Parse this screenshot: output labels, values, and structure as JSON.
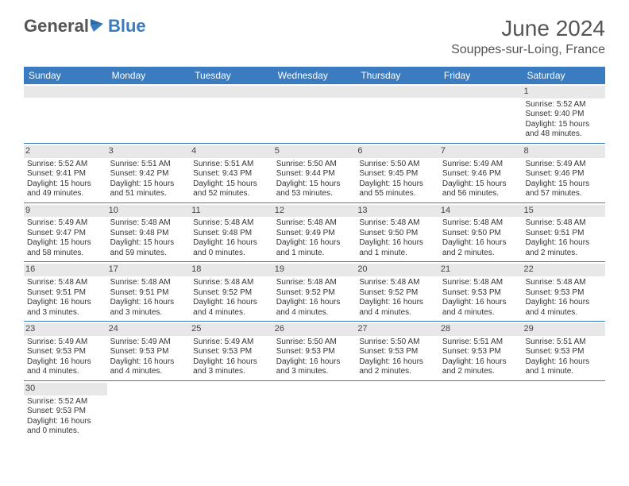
{
  "brand": {
    "general": "General",
    "blue": "Blue"
  },
  "title": "June 2024",
  "location": "Souppes-sur-Loing, France",
  "weekdays": [
    "Sunday",
    "Monday",
    "Tuesday",
    "Wednesday",
    "Thursday",
    "Friday",
    "Saturday"
  ],
  "colors": {
    "header_bar": "#3b7bbf",
    "daynum_bg": "#e8e8e8",
    "text": "#333333",
    "title_text": "#555555"
  },
  "weeks": [
    [
      {
        "num": "",
        "sunrise": "",
        "sunset": "",
        "daylight1": "",
        "daylight2": ""
      },
      {
        "num": "",
        "sunrise": "",
        "sunset": "",
        "daylight1": "",
        "daylight2": ""
      },
      {
        "num": "",
        "sunrise": "",
        "sunset": "",
        "daylight1": "",
        "daylight2": ""
      },
      {
        "num": "",
        "sunrise": "",
        "sunset": "",
        "daylight1": "",
        "daylight2": ""
      },
      {
        "num": "",
        "sunrise": "",
        "sunset": "",
        "daylight1": "",
        "daylight2": ""
      },
      {
        "num": "",
        "sunrise": "",
        "sunset": "",
        "daylight1": "",
        "daylight2": ""
      },
      {
        "num": "1",
        "sunrise": "Sunrise: 5:52 AM",
        "sunset": "Sunset: 9:40 PM",
        "daylight1": "Daylight: 15 hours",
        "daylight2": "and 48 minutes."
      }
    ],
    [
      {
        "num": "2",
        "sunrise": "Sunrise: 5:52 AM",
        "sunset": "Sunset: 9:41 PM",
        "daylight1": "Daylight: 15 hours",
        "daylight2": "and 49 minutes."
      },
      {
        "num": "3",
        "sunrise": "Sunrise: 5:51 AM",
        "sunset": "Sunset: 9:42 PM",
        "daylight1": "Daylight: 15 hours",
        "daylight2": "and 51 minutes."
      },
      {
        "num": "4",
        "sunrise": "Sunrise: 5:51 AM",
        "sunset": "Sunset: 9:43 PM",
        "daylight1": "Daylight: 15 hours",
        "daylight2": "and 52 minutes."
      },
      {
        "num": "5",
        "sunrise": "Sunrise: 5:50 AM",
        "sunset": "Sunset: 9:44 PM",
        "daylight1": "Daylight: 15 hours",
        "daylight2": "and 53 minutes."
      },
      {
        "num": "6",
        "sunrise": "Sunrise: 5:50 AM",
        "sunset": "Sunset: 9:45 PM",
        "daylight1": "Daylight: 15 hours",
        "daylight2": "and 55 minutes."
      },
      {
        "num": "7",
        "sunrise": "Sunrise: 5:49 AM",
        "sunset": "Sunset: 9:46 PM",
        "daylight1": "Daylight: 15 hours",
        "daylight2": "and 56 minutes."
      },
      {
        "num": "8",
        "sunrise": "Sunrise: 5:49 AM",
        "sunset": "Sunset: 9:46 PM",
        "daylight1": "Daylight: 15 hours",
        "daylight2": "and 57 minutes."
      }
    ],
    [
      {
        "num": "9",
        "sunrise": "Sunrise: 5:49 AM",
        "sunset": "Sunset: 9:47 PM",
        "daylight1": "Daylight: 15 hours",
        "daylight2": "and 58 minutes."
      },
      {
        "num": "10",
        "sunrise": "Sunrise: 5:48 AM",
        "sunset": "Sunset: 9:48 PM",
        "daylight1": "Daylight: 15 hours",
        "daylight2": "and 59 minutes."
      },
      {
        "num": "11",
        "sunrise": "Sunrise: 5:48 AM",
        "sunset": "Sunset: 9:48 PM",
        "daylight1": "Daylight: 16 hours",
        "daylight2": "and 0 minutes."
      },
      {
        "num": "12",
        "sunrise": "Sunrise: 5:48 AM",
        "sunset": "Sunset: 9:49 PM",
        "daylight1": "Daylight: 16 hours",
        "daylight2": "and 1 minute."
      },
      {
        "num": "13",
        "sunrise": "Sunrise: 5:48 AM",
        "sunset": "Sunset: 9:50 PM",
        "daylight1": "Daylight: 16 hours",
        "daylight2": "and 1 minute."
      },
      {
        "num": "14",
        "sunrise": "Sunrise: 5:48 AM",
        "sunset": "Sunset: 9:50 PM",
        "daylight1": "Daylight: 16 hours",
        "daylight2": "and 2 minutes."
      },
      {
        "num": "15",
        "sunrise": "Sunrise: 5:48 AM",
        "sunset": "Sunset: 9:51 PM",
        "daylight1": "Daylight: 16 hours",
        "daylight2": "and 2 minutes."
      }
    ],
    [
      {
        "num": "16",
        "sunrise": "Sunrise: 5:48 AM",
        "sunset": "Sunset: 9:51 PM",
        "daylight1": "Daylight: 16 hours",
        "daylight2": "and 3 minutes."
      },
      {
        "num": "17",
        "sunrise": "Sunrise: 5:48 AM",
        "sunset": "Sunset: 9:51 PM",
        "daylight1": "Daylight: 16 hours",
        "daylight2": "and 3 minutes."
      },
      {
        "num": "18",
        "sunrise": "Sunrise: 5:48 AM",
        "sunset": "Sunset: 9:52 PM",
        "daylight1": "Daylight: 16 hours",
        "daylight2": "and 4 minutes."
      },
      {
        "num": "19",
        "sunrise": "Sunrise: 5:48 AM",
        "sunset": "Sunset: 9:52 PM",
        "daylight1": "Daylight: 16 hours",
        "daylight2": "and 4 minutes."
      },
      {
        "num": "20",
        "sunrise": "Sunrise: 5:48 AM",
        "sunset": "Sunset: 9:52 PM",
        "daylight1": "Daylight: 16 hours",
        "daylight2": "and 4 minutes."
      },
      {
        "num": "21",
        "sunrise": "Sunrise: 5:48 AM",
        "sunset": "Sunset: 9:53 PM",
        "daylight1": "Daylight: 16 hours",
        "daylight2": "and 4 minutes."
      },
      {
        "num": "22",
        "sunrise": "Sunrise: 5:48 AM",
        "sunset": "Sunset: 9:53 PM",
        "daylight1": "Daylight: 16 hours",
        "daylight2": "and 4 minutes."
      }
    ],
    [
      {
        "num": "23",
        "sunrise": "Sunrise: 5:49 AM",
        "sunset": "Sunset: 9:53 PM",
        "daylight1": "Daylight: 16 hours",
        "daylight2": "and 4 minutes."
      },
      {
        "num": "24",
        "sunrise": "Sunrise: 5:49 AM",
        "sunset": "Sunset: 9:53 PM",
        "daylight1": "Daylight: 16 hours",
        "daylight2": "and 4 minutes."
      },
      {
        "num": "25",
        "sunrise": "Sunrise: 5:49 AM",
        "sunset": "Sunset: 9:53 PM",
        "daylight1": "Daylight: 16 hours",
        "daylight2": "and 3 minutes."
      },
      {
        "num": "26",
        "sunrise": "Sunrise: 5:50 AM",
        "sunset": "Sunset: 9:53 PM",
        "daylight1": "Daylight: 16 hours",
        "daylight2": "and 3 minutes."
      },
      {
        "num": "27",
        "sunrise": "Sunrise: 5:50 AM",
        "sunset": "Sunset: 9:53 PM",
        "daylight1": "Daylight: 16 hours",
        "daylight2": "and 2 minutes."
      },
      {
        "num": "28",
        "sunrise": "Sunrise: 5:51 AM",
        "sunset": "Sunset: 9:53 PM",
        "daylight1": "Daylight: 16 hours",
        "daylight2": "and 2 minutes."
      },
      {
        "num": "29",
        "sunrise": "Sunrise: 5:51 AM",
        "sunset": "Sunset: 9:53 PM",
        "daylight1": "Daylight: 16 hours",
        "daylight2": "and 1 minute."
      }
    ],
    [
      {
        "num": "30",
        "sunrise": "Sunrise: 5:52 AM",
        "sunset": "Sunset: 9:53 PM",
        "daylight1": "Daylight: 16 hours",
        "daylight2": "and 0 minutes."
      },
      {
        "num": "",
        "sunrise": "",
        "sunset": "",
        "daylight1": "",
        "daylight2": ""
      },
      {
        "num": "",
        "sunrise": "",
        "sunset": "",
        "daylight1": "",
        "daylight2": ""
      },
      {
        "num": "",
        "sunrise": "",
        "sunset": "",
        "daylight1": "",
        "daylight2": ""
      },
      {
        "num": "",
        "sunrise": "",
        "sunset": "",
        "daylight1": "",
        "daylight2": ""
      },
      {
        "num": "",
        "sunrise": "",
        "sunset": "",
        "daylight1": "",
        "daylight2": ""
      },
      {
        "num": "",
        "sunrise": "",
        "sunset": "",
        "daylight1": "",
        "daylight2": ""
      }
    ]
  ]
}
